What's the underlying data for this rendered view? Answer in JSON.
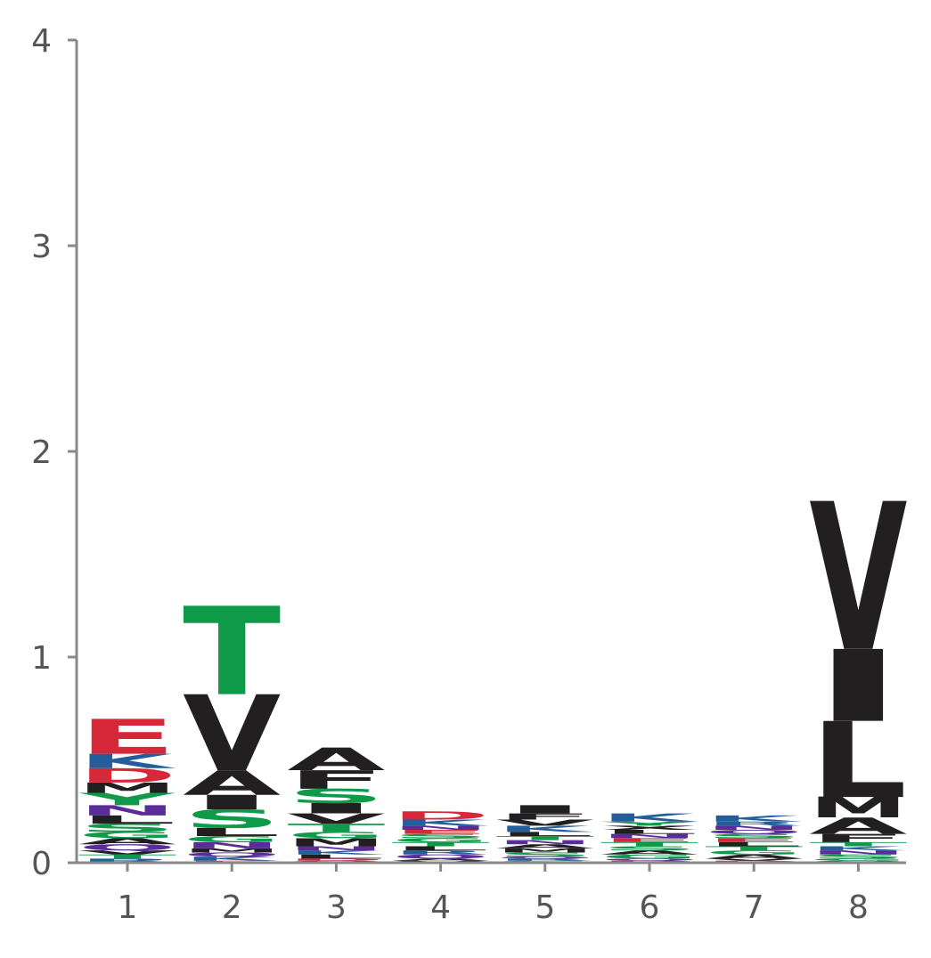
{
  "colors": {
    "acidic": "#d62839",
    "basic": "#245e9a",
    "polar": "#0f9a4a",
    "hydrophobic": "#221f20",
    "neutral": "#5a2c98",
    "axis": "#888888",
    "tick_text": "#555555"
  },
  "chart_data": {
    "type": "sequence-logo",
    "title": "",
    "xlabel": "",
    "ylabel": "",
    "ylim": [
      0,
      4
    ],
    "y_ticks": [
      "0",
      "1",
      "2",
      "3",
      "4"
    ],
    "x_ticks": [
      "1",
      "2",
      "3",
      "4",
      "5",
      "6",
      "7",
      "8"
    ],
    "positions": [
      {
        "position": 1,
        "letters": [
          {
            "letter": "E",
            "height": 0.17,
            "color": "acidic"
          },
          {
            "letter": "K",
            "height": 0.07,
            "color": "basic"
          },
          {
            "letter": "D",
            "height": 0.07,
            "color": "acidic"
          },
          {
            "letter": "M",
            "height": 0.05,
            "color": "hydrophobic"
          },
          {
            "letter": "Y",
            "height": 0.06,
            "color": "polar"
          },
          {
            "letter": "N",
            "height": 0.05,
            "color": "neutral"
          },
          {
            "letter": "L",
            "height": 0.04,
            "color": "hydrophobic"
          },
          {
            "letter": "S",
            "height": 0.04,
            "color": "polar"
          },
          {
            "letter": "G",
            "height": 0.03,
            "color": "polar"
          },
          {
            "letter": "A",
            "height": 0.03,
            "color": "hydrophobic"
          },
          {
            "letter": "Q",
            "height": 0.03,
            "color": "neutral"
          },
          {
            "letter": "V",
            "height": 0.02,
            "color": "hydrophobic"
          },
          {
            "letter": "T",
            "height": 0.02,
            "color": "polar"
          },
          {
            "letter": "R",
            "height": 0.02,
            "color": "basic"
          }
        ]
      },
      {
        "position": 2,
        "letters": [
          {
            "letter": "T",
            "height": 0.43,
            "color": "polar"
          },
          {
            "letter": "V",
            "height": 0.37,
            "color": "hydrophobic"
          },
          {
            "letter": "A",
            "height": 0.12,
            "color": "hydrophobic"
          },
          {
            "letter": "I",
            "height": 0.07,
            "color": "hydrophobic"
          },
          {
            "letter": "S",
            "height": 0.09,
            "color": "polar"
          },
          {
            "letter": "L",
            "height": 0.04,
            "color": "hydrophobic"
          },
          {
            "letter": "G",
            "height": 0.03,
            "color": "polar"
          },
          {
            "letter": "N",
            "height": 0.03,
            "color": "neutral"
          },
          {
            "letter": "M",
            "height": 0.02,
            "color": "hydrophobic"
          },
          {
            "letter": "Q",
            "height": 0.02,
            "color": "neutral"
          },
          {
            "letter": "K",
            "height": 0.02,
            "color": "basic"
          },
          {
            "letter": "E",
            "height": 0.01,
            "color": "acidic"
          }
        ]
      },
      {
        "position": 3,
        "letters": [
          {
            "letter": "A",
            "height": 0.11,
            "color": "hydrophobic"
          },
          {
            "letter": "F",
            "height": 0.09,
            "color": "hydrophobic"
          },
          {
            "letter": "S",
            "height": 0.07,
            "color": "polar"
          },
          {
            "letter": "I",
            "height": 0.05,
            "color": "hydrophobic"
          },
          {
            "letter": "V",
            "height": 0.05,
            "color": "hydrophobic"
          },
          {
            "letter": "T",
            "height": 0.04,
            "color": "polar"
          },
          {
            "letter": "G",
            "height": 0.03,
            "color": "polar"
          },
          {
            "letter": "M",
            "height": 0.04,
            "color": "hydrophobic"
          },
          {
            "letter": "N",
            "height": 0.02,
            "color": "neutral"
          },
          {
            "letter": "K",
            "height": 0.02,
            "color": "basic"
          },
          {
            "letter": "L",
            "height": 0.02,
            "color": "hydrophobic"
          },
          {
            "letter": "D",
            "height": 0.01,
            "color": "acidic"
          },
          {
            "letter": "Q",
            "height": 0.01,
            "color": "neutral"
          }
        ]
      },
      {
        "position": 4,
        "letters": [
          {
            "letter": "D",
            "height": 0.04,
            "color": "acidic"
          },
          {
            "letter": "K",
            "height": 0.03,
            "color": "basic"
          },
          {
            "letter": "N",
            "height": 0.02,
            "color": "neutral"
          },
          {
            "letter": "E",
            "height": 0.02,
            "color": "acidic"
          },
          {
            "letter": "S",
            "height": 0.02,
            "color": "polar"
          },
          {
            "letter": "G",
            "height": 0.02,
            "color": "polar"
          },
          {
            "letter": "T",
            "height": 0.02,
            "color": "polar"
          },
          {
            "letter": "L",
            "height": 0.02,
            "color": "hydrophobic"
          },
          {
            "letter": "R",
            "height": 0.02,
            "color": "basic"
          },
          {
            "letter": "Q",
            "height": 0.02,
            "color": "neutral"
          },
          {
            "letter": "A",
            "height": 0.01,
            "color": "hydrophobic"
          },
          {
            "letter": "V",
            "height": 0.01,
            "color": "hydrophobic"
          }
        ]
      },
      {
        "position": 5,
        "letters": [
          {
            "letter": "I",
            "height": 0.04,
            "color": "hydrophobic"
          },
          {
            "letter": "F",
            "height": 0.03,
            "color": "hydrophobic"
          },
          {
            "letter": "V",
            "height": 0.03,
            "color": "hydrophobic"
          },
          {
            "letter": "K",
            "height": 0.03,
            "color": "basic"
          },
          {
            "letter": "L",
            "height": 0.02,
            "color": "hydrophobic"
          },
          {
            "letter": "T",
            "height": 0.02,
            "color": "polar"
          },
          {
            "letter": "N",
            "height": 0.02,
            "color": "neutral"
          },
          {
            "letter": "A",
            "height": 0.02,
            "color": "hydrophobic"
          },
          {
            "letter": "M",
            "height": 0.02,
            "color": "hydrophobic"
          },
          {
            "letter": "S",
            "height": 0.02,
            "color": "polar"
          },
          {
            "letter": "Q",
            "height": 0.01,
            "color": "neutral"
          },
          {
            "letter": "R",
            "height": 0.01,
            "color": "basic"
          },
          {
            "letter": "G",
            "height": 0.01,
            "color": "polar"
          }
        ]
      },
      {
        "position": 6,
        "letters": [
          {
            "letter": "K",
            "height": 0.04,
            "color": "basic"
          },
          {
            "letter": "Y",
            "height": 0.02,
            "color": "polar"
          },
          {
            "letter": "X",
            "height": 0.02,
            "color": "hydrophobic"
          },
          {
            "letter": "L",
            "height": 0.02,
            "color": "hydrophobic"
          },
          {
            "letter": "N",
            "height": 0.02,
            "color": "neutral"
          },
          {
            "letter": "E",
            "height": 0.02,
            "color": "acidic"
          },
          {
            "letter": "T",
            "height": 0.02,
            "color": "polar"
          },
          {
            "letter": "S",
            "height": 0.02,
            "color": "polar"
          },
          {
            "letter": "A",
            "height": 0.02,
            "color": "hydrophobic"
          },
          {
            "letter": "G",
            "height": 0.02,
            "color": "polar"
          },
          {
            "letter": "Q",
            "height": 0.01,
            "color": "neutral"
          },
          {
            "letter": "D",
            "height": 0.01,
            "color": "acidic"
          }
        ]
      },
      {
        "position": 7,
        "letters": [
          {
            "letter": "K",
            "height": 0.03,
            "color": "basic"
          },
          {
            "letter": "R",
            "height": 0.02,
            "color": "basic"
          },
          {
            "letter": "N",
            "height": 0.02,
            "color": "neutral"
          },
          {
            "letter": "Q",
            "height": 0.02,
            "color": "neutral"
          },
          {
            "letter": "S",
            "height": 0.02,
            "color": "polar"
          },
          {
            "letter": "E",
            "height": 0.02,
            "color": "acidic"
          },
          {
            "letter": "L",
            "height": 0.02,
            "color": "hydrophobic"
          },
          {
            "letter": "T",
            "height": 0.02,
            "color": "polar"
          },
          {
            "letter": "G",
            "height": 0.02,
            "color": "polar"
          },
          {
            "letter": "A",
            "height": 0.02,
            "color": "hydrophobic"
          },
          {
            "letter": "V",
            "height": 0.01,
            "color": "hydrophobic"
          },
          {
            "letter": "D",
            "height": 0.01,
            "color": "acidic"
          }
        ]
      },
      {
        "position": 8,
        "letters": [
          {
            "letter": "V",
            "height": 0.72,
            "color": "hydrophobic"
          },
          {
            "letter": "I",
            "height": 0.35,
            "color": "hydrophobic"
          },
          {
            "letter": "L",
            "height": 0.37,
            "color": "hydrophobic"
          },
          {
            "letter": "M",
            "height": 0.1,
            "color": "hydrophobic"
          },
          {
            "letter": "A",
            "height": 0.08,
            "color": "hydrophobic"
          },
          {
            "letter": "F",
            "height": 0.04,
            "color": "hydrophobic"
          },
          {
            "letter": "T",
            "height": 0.02,
            "color": "polar"
          },
          {
            "letter": "K",
            "height": 0.02,
            "color": "basic"
          },
          {
            "letter": "N",
            "height": 0.02,
            "color": "neutral"
          },
          {
            "letter": "S",
            "height": 0.02,
            "color": "polar"
          },
          {
            "letter": "G",
            "height": 0.01,
            "color": "polar"
          },
          {
            "letter": "Q",
            "height": 0.01,
            "color": "neutral"
          }
        ]
      }
    ]
  }
}
